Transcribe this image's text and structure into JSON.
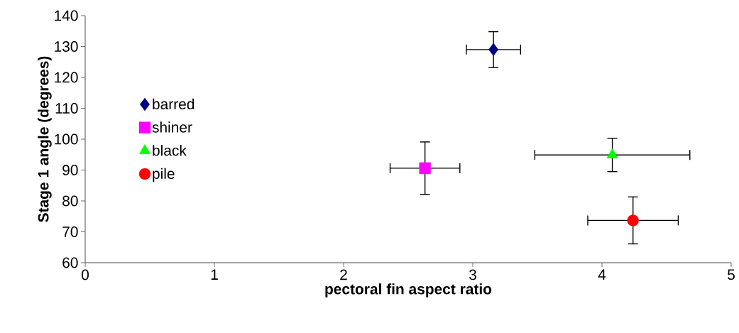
{
  "chart_data": {
    "type": "scatter",
    "xlabel": "pectoral fin aspect ratio",
    "ylabel": "Stage 1 angle (degrees)",
    "xlim": [
      0,
      5
    ],
    "xticks": [
      0,
      1,
      2,
      3,
      4,
      5
    ],
    "ylim": [
      60,
      140
    ],
    "yticks": [
      60,
      70,
      80,
      90,
      100,
      110,
      120,
      130,
      140
    ],
    "grid": false,
    "legend": "left",
    "series": [
      {
        "name": "barred",
        "color": "#000080",
        "marker": "diamond",
        "x": [
          3.16
        ],
        "values": [
          129.0
        ],
        "xerrors": [
          0.21
        ],
        "errors": [
          5.8
        ]
      },
      {
        "name": "shiner",
        "color": "#ff00ff",
        "marker": "square",
        "x": [
          2.63
        ],
        "values": [
          90.6
        ],
        "xerrors": [
          0.27
        ],
        "errors": [
          8.5
        ]
      },
      {
        "name": "black",
        "color": "#00ff00",
        "marker": "triangle",
        "x": [
          4.08
        ],
        "values": [
          94.9
        ],
        "xerrors": [
          0.6
        ],
        "errors": [
          5.4
        ]
      },
      {
        "name": "pile",
        "color": "#ff0000",
        "marker": "circle",
        "x": [
          4.24
        ],
        "values": [
          73.7
        ],
        "xerrors": [
          0.35
        ],
        "errors": [
          7.6
        ]
      }
    ]
  }
}
